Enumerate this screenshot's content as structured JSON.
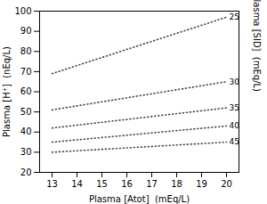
{
  "chart_data": {
    "type": "line",
    "xlabel": "Plasma [Atot]  (mEq/L)",
    "ylabel": "Plasma [H⁺]  (nEq/L)",
    "y2label": "Plasma [SID]  (mEq/L)",
    "x": [
      13,
      20
    ],
    "series": [
      {
        "name": "25",
        "values": [
          69,
          97
        ]
      },
      {
        "name": "30",
        "values": [
          51,
          65
        ]
      },
      {
        "name": "35",
        "values": [
          42,
          52
        ]
      },
      {
        "name": "40",
        "values": [
          35,
          43
        ]
      },
      {
        "name": "45",
        "values": [
          30,
          35
        ]
      }
    ],
    "color": "#444444",
    "line_style": "dotted",
    "xlim": [
      12.5,
      20.5
    ],
    "ylim": [
      20,
      100
    ],
    "xticks": [
      13,
      14,
      15,
      16,
      17,
      18,
      19,
      20
    ],
    "yticks": [
      20,
      30,
      40,
      50,
      60,
      70,
      80,
      90,
      100
    ]
  }
}
